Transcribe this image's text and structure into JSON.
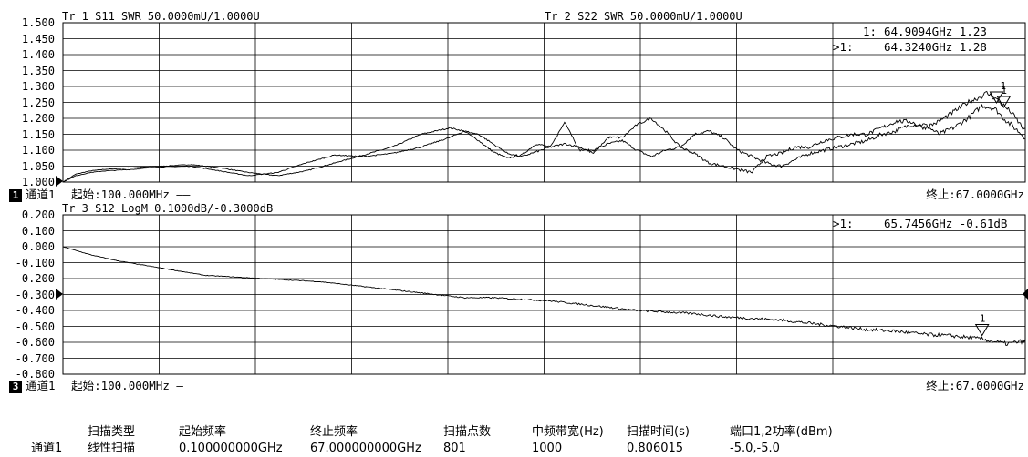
{
  "chart_data": [
    {
      "type": "line",
      "headers": [
        "Tr 1  S11 SWR 50.0000mU/1.0000U",
        "Tr 2  S22 SWR 50.0000mU/1.0000U"
      ],
      "yticks": [
        "1.500",
        "1.450",
        "1.400",
        "1.350",
        "1.300",
        "1.250",
        "1.200",
        "1.150",
        "1.100",
        "1.050",
        "1.000"
      ],
      "ylim": [
        1.0,
        1.5
      ],
      "xlim_ghz": [
        0.1,
        67.0
      ],
      "start_label": "起始:100.000MHz ——",
      "stop_label": "终止:67.0000GHz",
      "channel_box": "1",
      "channel_name": "通道1",
      "marker_readouts": [
        {
          "prefix": "1:",
          "text": "64.9094GHz 1.23"
        },
        {
          "prefix": ">1:",
          "text": "64.3240GHz 1.28"
        }
      ],
      "marker_symbol_label": "1",
      "series": [
        {
          "colour": "#000000",
          "x_ghz": [
            0.1,
            1,
            2,
            3,
            5,
            7,
            9,
            11,
            13,
            15,
            17,
            19,
            21,
            23,
            25,
            27,
            28,
            29,
            30,
            31,
            32,
            33,
            34,
            35,
            36,
            37,
            38,
            39,
            40,
            41,
            42,
            43,
            44,
            45,
            46,
            47,
            48,
            49,
            50,
            51,
            52,
            53,
            54,
            55,
            56,
            57,
            58,
            59,
            60,
            61,
            62,
            63,
            64,
            64.9,
            65.5,
            66,
            67
          ],
          "y": [
            1.0,
            1.025,
            1.035,
            1.04,
            1.045,
            1.05,
            1.055,
            1.045,
            1.03,
            1.02,
            1.035,
            1.06,
            1.085,
            1.11,
            1.15,
            1.17,
            1.16,
            1.13,
            1.095,
            1.075,
            1.085,
            1.12,
            1.11,
            1.19,
            1.1,
            1.1,
            1.12,
            1.13,
            1.1,
            1.08,
            1.1,
            1.11,
            1.15,
            1.16,
            1.14,
            1.1,
            1.08,
            1.06,
            1.05,
            1.07,
            1.09,
            1.1,
            1.11,
            1.12,
            1.13,
            1.15,
            1.16,
            1.18,
            1.18,
            1.15,
            1.17,
            1.2,
            1.24,
            1.23,
            1.2,
            1.18,
            1.14
          ]
        },
        {
          "colour": "#000000",
          "x_ghz": [
            0.1,
            1,
            2,
            3,
            5,
            7,
            9,
            11,
            13,
            15,
            17,
            19,
            21,
            23,
            25,
            27,
            28,
            29,
            30,
            31,
            32,
            33,
            34,
            35,
            36,
            37,
            38,
            39,
            40,
            41,
            42,
            43,
            44,
            45,
            46,
            47,
            48,
            49,
            50,
            51,
            52,
            53,
            54,
            55,
            56,
            57,
            58,
            59,
            60,
            61,
            62,
            63,
            64,
            64.3,
            65,
            66,
            67
          ],
          "y": [
            1.0,
            1.02,
            1.03,
            1.035,
            1.04,
            1.048,
            1.05,
            1.035,
            1.02,
            1.03,
            1.06,
            1.085,
            1.08,
            1.09,
            1.11,
            1.14,
            1.16,
            1.15,
            1.12,
            1.09,
            1.08,
            1.095,
            1.11,
            1.12,
            1.11,
            1.09,
            1.14,
            1.14,
            1.18,
            1.2,
            1.16,
            1.11,
            1.09,
            1.06,
            1.05,
            1.04,
            1.03,
            1.08,
            1.09,
            1.11,
            1.11,
            1.13,
            1.14,
            1.15,
            1.15,
            1.17,
            1.19,
            1.19,
            1.17,
            1.19,
            1.22,
            1.25,
            1.27,
            1.28,
            1.26,
            1.22,
            1.16
          ]
        }
      ]
    },
    {
      "type": "line",
      "headers": [
        "Tr 3  S12 LogM 0.1000dB/-0.3000dB"
      ],
      "yticks": [
        "0.200",
        "0.100",
        "0.000",
        "-0.100",
        "-0.200",
        "-0.300",
        "-0.400",
        "-0.500",
        "-0.600",
        "-0.700",
        "-0.800"
      ],
      "ylim": [
        -0.8,
        0.2
      ],
      "xlim_ghz": [
        0.1,
        67.0
      ],
      "start_label": "起始:100.000MHz —",
      "stop_label": "终止:67.0000GHz",
      "channel_box": "3",
      "channel_name": "通道1",
      "marker_readouts": [
        {
          "prefix": ">1:",
          "text": "65.7456GHz -0.61dB"
        }
      ],
      "marker_symbol_label": "1",
      "series": [
        {
          "colour": "#000000",
          "x_ghz": [
            0.1,
            2,
            4,
            6,
            8,
            10,
            12,
            14,
            16,
            18,
            20,
            22,
            24,
            26,
            28,
            30,
            32,
            34,
            36,
            38,
            40,
            42,
            44,
            46,
            48,
            50,
            52,
            54,
            56,
            58,
            60,
            62,
            64,
            65.7,
            67
          ],
          "y": [
            0.0,
            -0.05,
            -0.09,
            -0.12,
            -0.15,
            -0.18,
            -0.19,
            -0.2,
            -0.21,
            -0.22,
            -0.24,
            -0.26,
            -0.28,
            -0.3,
            -0.32,
            -0.32,
            -0.33,
            -0.34,
            -0.36,
            -0.38,
            -0.4,
            -0.41,
            -0.42,
            -0.44,
            -0.45,
            -0.46,
            -0.48,
            -0.5,
            -0.52,
            -0.53,
            -0.55,
            -0.56,
            -0.58,
            -0.61,
            -0.59
          ]
        }
      ]
    }
  ],
  "sweep_table": {
    "headers": [
      "扫描类型",
      "起始频率",
      "终止频率",
      "扫描点数",
      "中频带宽(Hz)",
      "扫描时间(s)",
      "端口1,2功率(dBm)"
    ],
    "row_label": "通道1",
    "values": [
      "线性扫描",
      "0.100000000GHz",
      "67.000000000GHz",
      "801",
      "1000",
      "0.806015",
      "-5.0,-5.0"
    ]
  }
}
